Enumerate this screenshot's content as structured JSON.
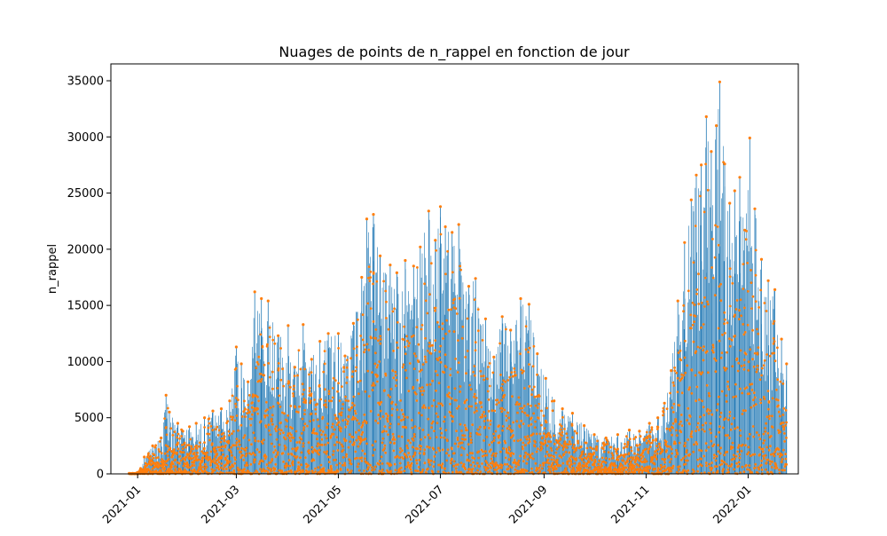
{
  "chart_data": {
    "type": "scatter",
    "title": "Nuages de points de n_rappel en fonction de jour",
    "xlabel": "",
    "ylabel": "n_rappel",
    "x_type": "date",
    "xlim": [
      "2020-12-16",
      "2022-01-31"
    ],
    "ylim": [
      0,
      36500
    ],
    "x_ticks": [
      "2021-01",
      "2021-03",
      "2021-05",
      "2021-07",
      "2021-09",
      "2021-11",
      "2022-01"
    ],
    "y_ticks": [
      0,
      5000,
      10000,
      15000,
      20000,
      25000,
      30000,
      35000
    ],
    "grid": false,
    "legend": "none",
    "colors": {
      "stems": "#1f77b4",
      "points": "#ff7f0e"
    },
    "series": [
      {
        "marker": "point",
        "x": [
          "2020-12-27",
          "2021-01-01",
          "2021-01-05",
          "2021-01-10",
          "2021-01-15",
          "2021-01-18",
          "2021-01-20",
          "2021-01-25",
          "2021-01-28",
          "2021-02-01",
          "2021-02-05",
          "2021-02-10",
          "2021-02-15",
          "2021-02-20",
          "2021-02-25",
          "2021-03-01",
          "2021-03-04",
          "2021-03-08",
          "2021-03-12",
          "2021-03-16",
          "2021-03-20",
          "2021-03-26",
          "2021-04-01",
          "2021-04-05",
          "2021-04-10",
          "2021-04-15",
          "2021-04-20",
          "2021-04-25",
          "2021-05-01",
          "2021-05-05",
          "2021-05-10",
          "2021-05-15",
          "2021-05-18",
          "2021-05-22",
          "2021-05-26",
          "2021-06-01",
          "2021-06-05",
          "2021-06-10",
          "2021-06-15",
          "2021-06-19",
          "2021-06-24",
          "2021-06-28",
          "2021-07-01",
          "2021-07-04",
          "2021-07-08",
          "2021-07-12",
          "2021-07-18",
          "2021-07-22",
          "2021-07-28",
          "2021-08-02",
          "2021-08-07",
          "2021-08-12",
          "2021-08-18",
          "2021-08-23",
          "2021-08-28",
          "2021-09-02",
          "2021-09-07",
          "2021-09-12",
          "2021-09-18",
          "2021-09-25",
          "2021-10-01",
          "2021-10-08",
          "2021-10-15",
          "2021-10-22",
          "2021-10-28",
          "2021-11-03",
          "2021-11-08",
          "2021-11-12",
          "2021-11-16",
          "2021-11-20",
          "2021-11-24",
          "2021-11-28",
          "2021-12-01",
          "2021-12-04",
          "2021-12-07",
          "2021-12-10",
          "2021-12-13",
          "2021-12-15",
          "2021-12-18",
          "2021-12-21",
          "2021-12-24",
          "2021-12-27",
          "2021-12-30",
          "2022-01-02",
          "2022-01-05",
          "2022-01-09",
          "2022-01-13",
          "2022-01-17",
          "2022-01-21",
          "2022-01-24"
        ],
        "y": [
          50,
          120,
          1500,
          2500,
          3200,
          7000,
          5500,
          4500,
          3800,
          4200,
          4500,
          5000,
          5600,
          5800,
          6500,
          11300,
          9800,
          8200,
          16200,
          15600,
          15400,
          12300,
          13200,
          9500,
          13300,
          10200,
          11800,
          12500,
          12500,
          10500,
          13400,
          17500,
          22700,
          23100,
          19400,
          18600,
          17900,
          19000,
          18500,
          20200,
          23400,
          20800,
          23800,
          22000,
          21500,
          22200,
          16700,
          17400,
          13800,
          10400,
          14000,
          12800,
          15600,
          15100,
          10700,
          8500,
          6500,
          5800,
          5400,
          4300,
          3500,
          3200,
          3500,
          3900,
          3800,
          4500,
          5000,
          6300,
          9200,
          15400,
          20600,
          24400,
          26600,
          27500,
          31800,
          28700,
          31000,
          34900,
          27600,
          24100,
          25200,
          26400,
          21700,
          29900,
          23600,
          19100,
          17200,
          16400,
          12000,
          9800
        ]
      }
    ]
  }
}
